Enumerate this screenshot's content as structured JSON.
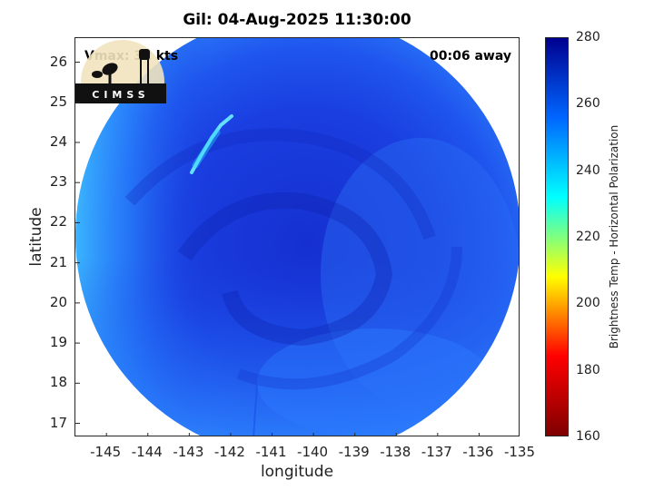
{
  "title": "Gil: 04-Aug-2025 11:30:00",
  "annotations": {
    "vmax": "Vmax: 32 kts",
    "time_away": "00:06 away"
  },
  "axes": {
    "xlabel": "longitude",
    "ylabel": "latitude",
    "xlim": [
      -145.75,
      -135
    ],
    "ylim": [
      16.65,
      26.6
    ],
    "xticks": [
      "-145",
      "-144",
      "-143",
      "-142",
      "-141",
      "-140",
      "-139",
      "-138",
      "-137",
      "-136",
      "-135"
    ],
    "xtick_values": [
      -145,
      -144,
      -143,
      -142,
      -141,
      -140,
      -139,
      -138,
      -137,
      -136,
      -135
    ],
    "yticks": [
      "17",
      "18",
      "19",
      "20",
      "21",
      "22",
      "23",
      "24",
      "25",
      "26"
    ],
    "ytick_values": [
      17,
      18,
      19,
      20,
      21,
      22,
      23,
      24,
      25,
      26
    ]
  },
  "colorbar": {
    "label": "Brightness Temp - Horizontal Polarization",
    "ticks": [
      "160",
      "180",
      "200",
      "220",
      "240",
      "260",
      "280"
    ],
    "tick_values": [
      160,
      180,
      200,
      220,
      240,
      260,
      280
    ],
    "range": [
      160,
      280
    ],
    "colors": [
      "#7f0000",
      "#ff0000",
      "#ffff00",
      "#00ffff",
      "#0066ff",
      "#00008f"
    ]
  },
  "map": {
    "swath_center": [
      -140.1,
      21.7
    ],
    "swath_extent_lon": [
      -145.7,
      -135.2
    ],
    "swath_extent_lat": [
      16.65,
      26.5
    ],
    "dominant_color": "#1a3ee0",
    "edge_color": "#3ea0ff",
    "cold_streak_color": "#6ff0ff"
  },
  "logo": {
    "text": "CIMSS"
  }
}
